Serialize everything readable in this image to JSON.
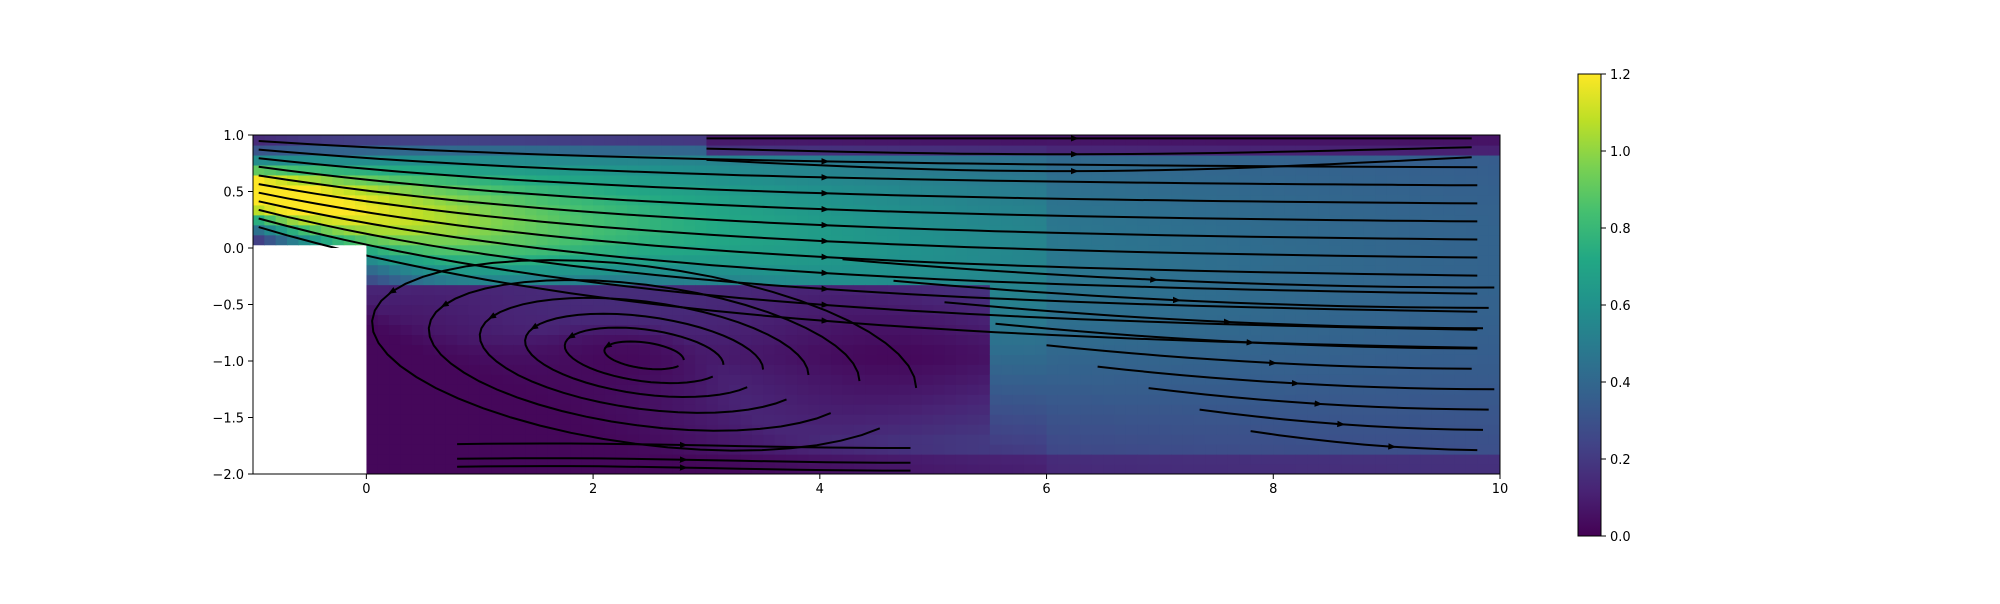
{
  "chart_data": {
    "type": "heatmap",
    "subtype": "flow speed field with streamlines (backward-facing step)",
    "title": "",
    "xlabel": "",
    "ylabel": "",
    "xlim": [
      -1,
      10
    ],
    "ylim": [
      -2,
      1
    ],
    "x_ticks": [
      "0",
      "2",
      "4",
      "6",
      "8",
      "10"
    ],
    "y_ticks": [
      "1.0",
      "0.5",
      "0.0",
      "−0.5",
      "−1.0",
      "−1.5",
      "−2.0"
    ],
    "colormap": "viridis",
    "colorbar": {
      "range": [
        0,
        1.2
      ],
      "ticks": [
        "1.2",
        "1.0",
        "0.8",
        "0.6",
        "0.4",
        "0.2",
        "0.0"
      ],
      "placement": "right"
    },
    "step_region": {
      "x": [
        -1,
        0
      ],
      "y": [
        -2,
        0
      ],
      "color": "#ffffff"
    },
    "speed_field_features": {
      "inlet_jet_peak": {
        "x": -1,
        "y": 0.5,
        "value": 1.15
      },
      "recirculation_vortex_center": {
        "x": 2.3,
        "y": -0.95,
        "value": 0.02
      },
      "downstream_uniform_value": 0.35
    },
    "streamline_color": "#000000",
    "grid": false
  }
}
